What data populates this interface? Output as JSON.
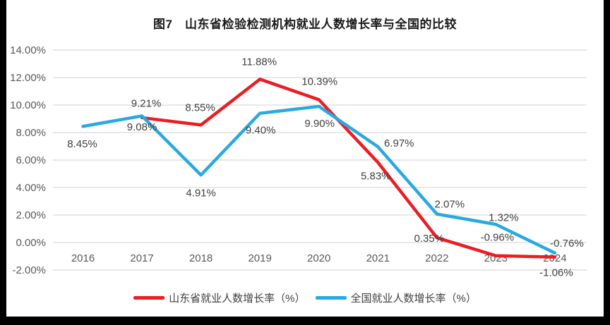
{
  "chart_data": {
    "type": "line",
    "title": "图7　山东省检验检测机构就业人数增长率与全国的比较",
    "categories": [
      "2016",
      "2017",
      "2018",
      "2019",
      "2020",
      "2021",
      "2022",
      "2023",
      "2024"
    ],
    "y_ticks": [
      "14.00%",
      "12.00%",
      "10.00%",
      "8.00%",
      "6.00%",
      "4.00%",
      "2.00%",
      "0.00%",
      "-2.00%"
    ],
    "ylim": [
      -2,
      14
    ],
    "grid": true,
    "legend_position": "bottom",
    "colors": {
      "grid": "#d9d9d9",
      "axis_text": "#595959",
      "label_text": "#404040",
      "title_text": "#1a1a1a"
    },
    "series": [
      {
        "name": "山东省就业人数增长率（%）",
        "color": "#ec1c24",
        "values": [
          null,
          9.08,
          8.55,
          11.88,
          10.39,
          5.83,
          0.35,
          -0.96,
          -1.06
        ],
        "labels": [
          "",
          "9.08%",
          "8.55%",
          "11.88%",
          "10.39%",
          "5.83%",
          "0.35%",
          "-0.96%",
          "-1.06%"
        ],
        "label_offsets": [
          [
            0,
            0
          ],
          [
            0,
            13
          ],
          [
            -1,
            -25
          ],
          [
            -1,
            -25
          ],
          [
            1,
            -26
          ],
          [
            -3,
            19
          ],
          [
            -11,
            1
          ],
          [
            2,
            -26
          ],
          [
            2,
            22
          ]
        ]
      },
      {
        "name": "全国就业人数增长率（%）",
        "color": "#29a9e1",
        "values": [
          8.45,
          9.21,
          4.91,
          9.4,
          9.9,
          6.97,
          2.07,
          1.32,
          -0.76
        ],
        "labels": [
          "8.45%",
          "9.21%",
          "4.91%",
          "9.40%",
          "9.90%",
          "6.97%",
          "2.07%",
          "1.32%",
          "-0.76%"
        ],
        "label_offsets": [
          [
            -1,
            25
          ],
          [
            6,
            -18
          ],
          [
            0,
            25
          ],
          [
            1,
            24
          ],
          [
            1,
            24
          ],
          [
            30,
            -5
          ],
          [
            18,
            -14
          ],
          [
            11,
            -10
          ],
          [
            17,
            -14
          ]
        ]
      }
    ]
  }
}
